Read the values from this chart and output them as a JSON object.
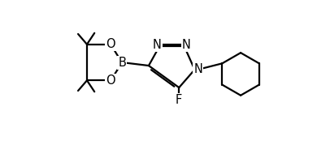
{
  "bg_color": "#ffffff",
  "line_color": "#000000",
  "line_width": 1.6,
  "font_size": 10.5,
  "fig_width": 3.9,
  "fig_height": 1.84,
  "dpi": 100,
  "xlim": [
    0.0,
    9.5
  ],
  "ylim": [
    0.5,
    5.5
  ]
}
